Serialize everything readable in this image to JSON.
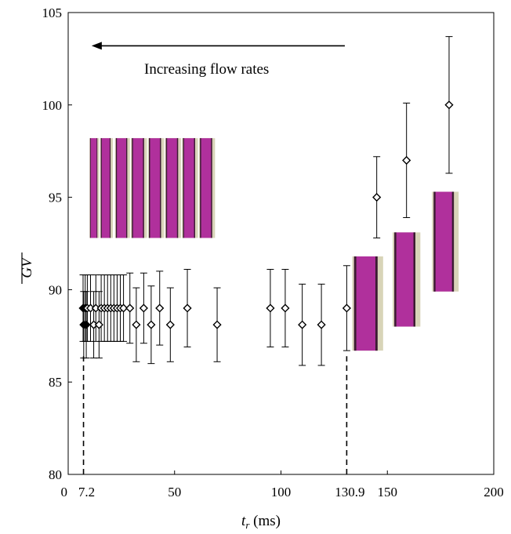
{
  "chart_data": {
    "type": "scatter",
    "xlabel_main": "t",
    "xlabel_sub": "r",
    "xlabel_unit": " (ms)",
    "ylabel": "GV",
    "xlim": [
      0,
      200
    ],
    "ylim": [
      80,
      105
    ],
    "x_ticks": [
      0,
      50,
      100,
      150,
      200
    ],
    "x_special_ticks": [
      {
        "value": 7.2,
        "label": "7.2"
      },
      {
        "value": 130.9,
        "label": "130.9"
      }
    ],
    "y_ticks": [
      80,
      85,
      90,
      95,
      100,
      105
    ],
    "annotation": "Increasing flow rates",
    "arrow": {
      "from_x": 130,
      "to_x": 11,
      "y": 103.2
    },
    "dashed_lines": [
      {
        "x": 7.2,
        "y_from": 80,
        "y_to": 86.4
      },
      {
        "x": 130.9,
        "y_from": 80,
        "y_to": 86.4
      }
    ],
    "series": [
      {
        "points": [
          {
            "x": 7.0,
            "y": 89.0,
            "err": 1.8,
            "filled": true
          },
          {
            "x": 7.3,
            "y": 88.1,
            "err": 1.8,
            "filled": true
          },
          {
            "x": 8.0,
            "y": 89.0,
            "err": 1.8,
            "filled": true
          },
          {
            "x": 8.5,
            "y": 88.1,
            "err": 1.8,
            "filled": true
          },
          {
            "x": 9.0,
            "y": 89.0,
            "err": 1.8,
            "filled": false
          },
          {
            "x": 10.5,
            "y": 89.0,
            "err": 1.8,
            "filled": false
          },
          {
            "x": 12.0,
            "y": 88.1,
            "err": 1.8,
            "filled": false
          },
          {
            "x": 13.0,
            "y": 89.0,
            "err": 1.8,
            "filled": false
          },
          {
            "x": 14.5,
            "y": 88.1,
            "err": 1.8,
            "filled": false
          },
          {
            "x": 15.5,
            "y": 89.0,
            "err": 1.8,
            "filled": false
          },
          {
            "x": 17.0,
            "y": 89.0,
            "err": 1.8,
            "filled": false
          },
          {
            "x": 18.5,
            "y": 89.0,
            "err": 1.8,
            "filled": false
          },
          {
            "x": 20.0,
            "y": 89.0,
            "err": 1.8,
            "filled": false
          },
          {
            "x": 21.5,
            "y": 89.0,
            "err": 1.8,
            "filled": false
          },
          {
            "x": 23.0,
            "y": 89.0,
            "err": 1.8,
            "filled": false
          },
          {
            "x": 24.5,
            "y": 89.0,
            "err": 1.8,
            "filled": false
          },
          {
            "x": 26.0,
            "y": 89.0,
            "err": 1.8,
            "filled": false
          },
          {
            "x": 29.0,
            "y": 89.0,
            "err": 1.9,
            "filled": false
          },
          {
            "x": 32.0,
            "y": 88.1,
            "err": 2.0,
            "filled": false
          },
          {
            "x": 35.5,
            "y": 89.0,
            "err": 1.9,
            "filled": false
          },
          {
            "x": 39.0,
            "y": 88.1,
            "err": 2.1,
            "filled": false
          },
          {
            "x": 43.0,
            "y": 89.0,
            "err": 2.0,
            "filled": false
          },
          {
            "x": 48.0,
            "y": 88.1,
            "err": 2.0,
            "filled": false
          },
          {
            "x": 56.0,
            "y": 89.0,
            "err": 2.1,
            "filled": false
          },
          {
            "x": 70.0,
            "y": 88.1,
            "err": 2.0,
            "filled": false
          },
          {
            "x": 95.0,
            "y": 89.0,
            "err": 2.1,
            "filled": false
          },
          {
            "x": 102.0,
            "y": 89.0,
            "err": 2.1,
            "filled": false
          },
          {
            "x": 110.0,
            "y": 88.1,
            "err": 2.2,
            "filled": false
          },
          {
            "x": 119.0,
            "y": 88.1,
            "err": 2.2,
            "filled": false
          },
          {
            "x": 130.9,
            "y": 89.0,
            "err": 2.3,
            "filled": false
          },
          {
            "x": 145.0,
            "y": 95.0,
            "err": 2.2,
            "filled": false
          },
          {
            "x": 159.0,
            "y": 97.0,
            "err": 3.1,
            "filled": false
          },
          {
            "x": 179.0,
            "y": 100.0,
            "err": 3.7,
            "filled": false
          }
        ]
      }
    ],
    "insets": [
      {
        "kind": "strip",
        "x0": 10,
        "x1": 14.5,
        "y0": 92.8,
        "y1": 98.2
      },
      {
        "kind": "strip",
        "x0": 15,
        "x1": 21,
        "y0": 92.8,
        "y1": 98.2
      },
      {
        "kind": "strip",
        "x0": 22,
        "x1": 29,
        "y0": 92.8,
        "y1": 98.2
      },
      {
        "kind": "strip",
        "x0": 29.5,
        "x1": 37,
        "y0": 92.8,
        "y1": 98.2
      },
      {
        "kind": "strip",
        "x0": 37.5,
        "x1": 45,
        "y0": 92.8,
        "y1": 98.2
      },
      {
        "kind": "strip",
        "x0": 45.5,
        "x1": 53,
        "y0": 92.8,
        "y1": 98.2
      },
      {
        "kind": "strip",
        "x0": 53.5,
        "x1": 61,
        "y0": 92.8,
        "y1": 98.2
      },
      {
        "kind": "strip",
        "x0": 61.5,
        "x1": 69,
        "y0": 92.8,
        "y1": 98.2
      },
      {
        "kind": "strip",
        "x0": 133.5,
        "x1": 148,
        "y0": 86.7,
        "y1": 91.8
      },
      {
        "kind": "strip",
        "x0": 152.5,
        "x1": 165.5,
        "y0": 88.0,
        "y1": 93.1
      },
      {
        "kind": "strip",
        "x0": 171,
        "x1": 183.5,
        "y0": 89.9,
        "y1": 95.3
      }
    ],
    "colors": {
      "marker": "#000000",
      "strip_fill": "#b0309c",
      "strip_dark": "#3a1d30",
      "strip_light": "#d8d4b8",
      "axis": "#000000"
    }
  }
}
